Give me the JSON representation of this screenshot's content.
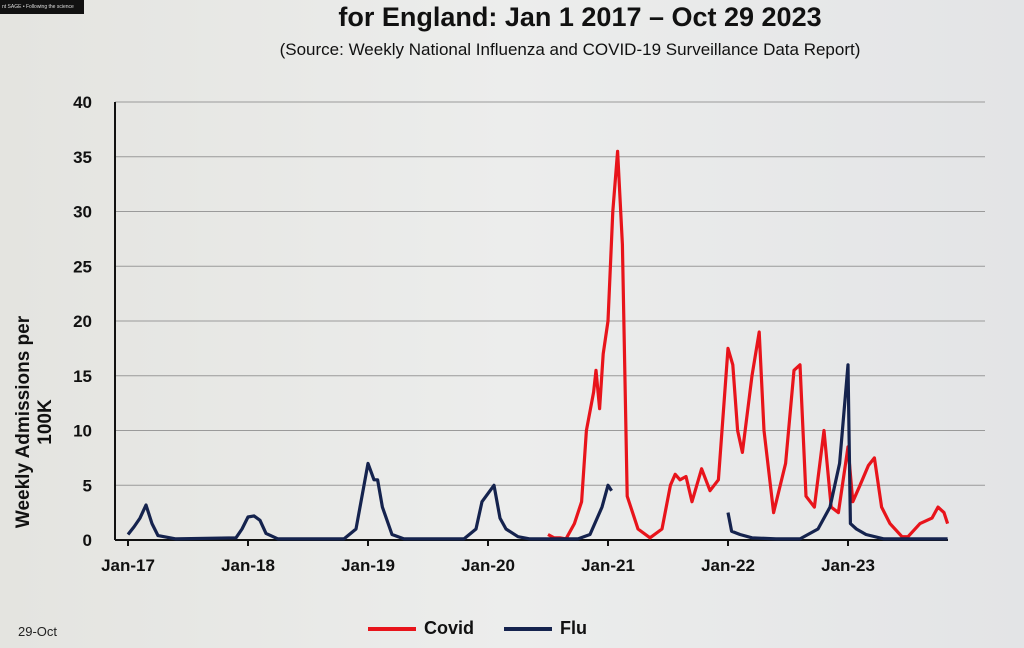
{
  "banner": "nt SAGE • Following the science",
  "footer_date": "29-Oct",
  "chart_data": {
    "type": "line",
    "title": "for England: Jan 1 2017 – Oct 29 2023",
    "subtitle": "(Source: Weekly National Influenza and COVID-19 Surveillance Data Report)",
    "xlabel": "",
    "ylabel": "Weekly Admissions per 100K",
    "ylim": [
      0,
      40
    ],
    "yticks": [
      0,
      5,
      10,
      15,
      20,
      25,
      30,
      35,
      40
    ],
    "xlim": [
      2017.0,
      2023.85
    ],
    "xticks": [
      {
        "x": 2017,
        "label": "Jan-17"
      },
      {
        "x": 2018,
        "label": "Jan-18"
      },
      {
        "x": 2019,
        "label": "Jan-19"
      },
      {
        "x": 2020,
        "label": "Jan-20"
      },
      {
        "x": 2021,
        "label": "Jan-21"
      },
      {
        "x": 2022,
        "label": "Jan-22"
      },
      {
        "x": 2023,
        "label": "Jan-23"
      }
    ],
    "grid": true,
    "legend_position": "bottom",
    "series": [
      {
        "name": "Covid",
        "color": "#e8141b",
        "points": [
          [
            2020.5,
            0.5
          ],
          [
            2020.55,
            0.2
          ],
          [
            2020.6,
            0.2
          ],
          [
            2020.65,
            0.1
          ],
          [
            2020.72,
            1.5
          ],
          [
            2020.78,
            3.5
          ],
          [
            2020.82,
            10
          ],
          [
            2020.88,
            13.5
          ],
          [
            2020.9,
            15.5
          ],
          [
            2020.93,
            12
          ],
          [
            2020.96,
            17
          ],
          [
            2021.0,
            20
          ],
          [
            2021.04,
            30
          ],
          [
            2021.08,
            35.5
          ],
          [
            2021.12,
            27
          ],
          [
            2021.16,
            4
          ],
          [
            2021.25,
            1
          ],
          [
            2021.35,
            0.2
          ],
          [
            2021.45,
            1
          ],
          [
            2021.52,
            5
          ],
          [
            2021.56,
            6
          ],
          [
            2021.6,
            5.5
          ],
          [
            2021.65,
            5.8
          ],
          [
            2021.7,
            3.5
          ],
          [
            2021.78,
            6.5
          ],
          [
            2021.85,
            4.5
          ],
          [
            2021.92,
            5.5
          ],
          [
            2022.0,
            17.5
          ],
          [
            2022.04,
            16
          ],
          [
            2022.08,
            10
          ],
          [
            2022.12,
            8
          ],
          [
            2022.2,
            15
          ],
          [
            2022.26,
            19
          ],
          [
            2022.3,
            10
          ],
          [
            2022.38,
            2.5
          ],
          [
            2022.48,
            7
          ],
          [
            2022.55,
            15.5
          ],
          [
            2022.6,
            16
          ],
          [
            2022.65,
            4
          ],
          [
            2022.72,
            3
          ],
          [
            2022.8,
            10
          ],
          [
            2022.86,
            3
          ],
          [
            2022.92,
            2.5
          ],
          [
            2023.0,
            8.5
          ],
          [
            2023.04,
            3.5
          ],
          [
            2023.1,
            5
          ],
          [
            2023.17,
            6.8
          ],
          [
            2023.22,
            7.5
          ],
          [
            2023.28,
            3
          ],
          [
            2023.35,
            1.5
          ],
          [
            2023.45,
            0.3
          ],
          [
            2023.5,
            0.3
          ],
          [
            2023.6,
            1.5
          ],
          [
            2023.7,
            2
          ],
          [
            2023.75,
            3
          ],
          [
            2023.8,
            2.5
          ],
          [
            2023.83,
            1.5
          ]
        ]
      },
      {
        "name": "Flu",
        "color": "#15234e",
        "points": [
          [
            2017.0,
            0.5
          ],
          [
            2017.05,
            1.2
          ],
          [
            2017.1,
            2
          ],
          [
            2017.15,
            3.2
          ],
          [
            2017.2,
            1.5
          ],
          [
            2017.25,
            0.4
          ],
          [
            2017.4,
            0.1
          ],
          [
            2017.9,
            0.2
          ],
          [
            2017.95,
            1
          ],
          [
            2018.0,
            2.1
          ],
          [
            2018.05,
            2.2
          ],
          [
            2018.1,
            1.8
          ],
          [
            2018.15,
            0.6
          ],
          [
            2018.25,
            0.1
          ],
          [
            2018.8,
            0.1
          ],
          [
            2018.9,
            1
          ],
          [
            2018.95,
            4
          ],
          [
            2019.0,
            7
          ],
          [
            2019.05,
            5.5
          ],
          [
            2019.08,
            5.5
          ],
          [
            2019.12,
            3
          ],
          [
            2019.2,
            0.5
          ],
          [
            2019.3,
            0.1
          ],
          [
            2019.8,
            0.1
          ],
          [
            2019.9,
            1
          ],
          [
            2019.95,
            3.5
          ],
          [
            2020.05,
            5
          ],
          [
            2020.1,
            2
          ],
          [
            2020.15,
            1
          ],
          [
            2020.25,
            0.3
          ],
          [
            2020.35,
            0.1
          ],
          [
            2020.75,
            0.1
          ],
          [
            2020.85,
            0.5
          ],
          [
            2020.95,
            3
          ],
          [
            2021.0,
            5
          ],
          [
            2021.03,
            4.5
          ],
          null,
          [
            2022.0,
            2.5
          ],
          [
            2022.03,
            0.8
          ],
          [
            2022.1,
            0.5
          ],
          [
            2022.2,
            0.2
          ],
          [
            2022.4,
            0.1
          ],
          [
            2022.6,
            0.1
          ],
          [
            2022.75,
            1
          ],
          [
            2022.85,
            3
          ],
          [
            2022.93,
            7
          ],
          [
            2023.0,
            16
          ],
          [
            2023.02,
            1.5
          ],
          [
            2023.07,
            1
          ],
          [
            2023.15,
            0.5
          ],
          [
            2023.3,
            0.1
          ],
          [
            2023.83,
            0.1
          ]
        ]
      }
    ]
  }
}
